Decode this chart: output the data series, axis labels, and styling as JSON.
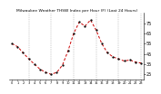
{
  "title": "Milwaukee Weather THSW Index per Hour (F) (Last 24 Hours)",
  "x_values": [
    0,
    1,
    2,
    3,
    4,
    5,
    6,
    7,
    8,
    9,
    10,
    11,
    12,
    13,
    14,
    15,
    16,
    17,
    18,
    19,
    20,
    21,
    22,
    23
  ],
  "y_values": [
    55,
    52,
    46,
    40,
    35,
    30,
    27,
    25,
    27,
    34,
    48,
    65,
    76,
    72,
    78,
    68,
    55,
    46,
    42,
    40,
    38,
    39,
    37,
    36
  ],
  "line_color": "#cc0000",
  "marker_color": "#111111",
  "background_color": "#ffffff",
  "grid_color": "#999999",
  "ylim": [
    20,
    85
  ],
  "ytick_values": [
    25,
    35,
    45,
    55,
    65,
    75
  ],
  "ytick_labels": [
    "25",
    "35",
    "45",
    "55",
    "65",
    "75"
  ],
  "ylabel_fontsize": 3.5,
  "title_fontsize": 3.2,
  "dashed_gridline_positions": [
    3,
    7,
    11,
    15,
    19,
    23
  ],
  "xtick_positions": [
    0,
    1,
    2,
    3,
    4,
    5,
    6,
    7,
    8,
    9,
    10,
    11,
    12,
    13,
    14,
    15,
    16,
    17,
    18,
    19,
    20,
    21,
    22,
    23
  ],
  "xtick_fontsize": 2.5
}
